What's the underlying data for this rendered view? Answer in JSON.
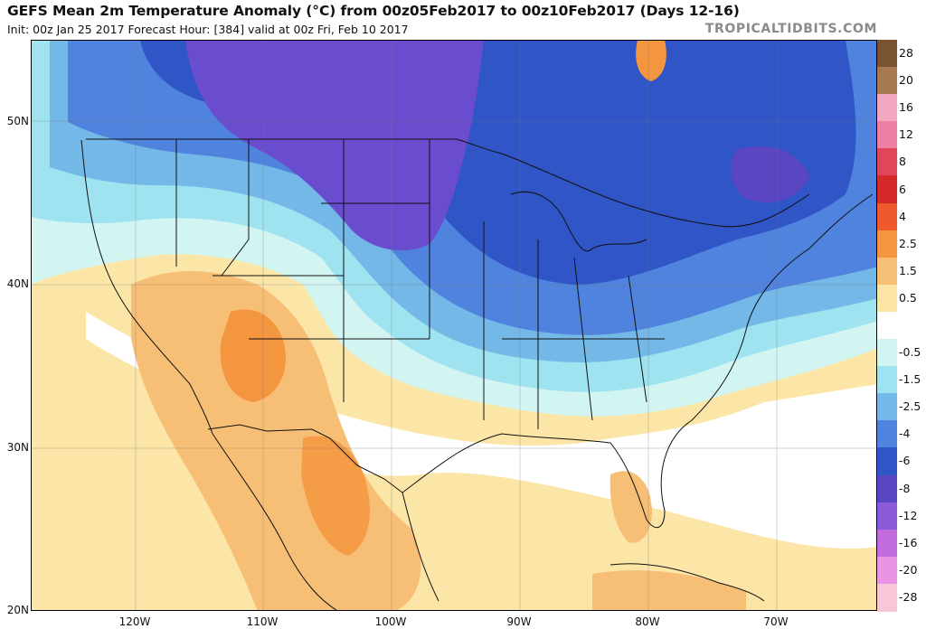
{
  "header": {
    "title": "GEFS Mean 2m Temperature Anomaly (°C) from 00z05Feb2017 to 00z10Feb2017 (Days 12-16)",
    "subtitle": "Init: 00z Jan 25 2017   Forecast Hour: [384]   valid at 00z Fri, Feb 10 2017",
    "brand": "TROPICALTIDBITS.COM"
  },
  "axes": {
    "lat_labels": [
      "50N",
      "40N",
      "30N",
      "20N"
    ],
    "lon_labels": [
      "120W",
      "110W",
      "100W",
      "90W",
      "80W",
      "70W"
    ]
  },
  "colorbar": {
    "levels": [
      {
        "label": "28",
        "color": "#7a5432"
      },
      {
        "label": "20",
        "color": "#a87a52"
      },
      {
        "label": "16",
        "color": "#f2a8bf"
      },
      {
        "label": "12",
        "color": "#ee7fa2"
      },
      {
        "label": "8",
        "color": "#e2455a"
      },
      {
        "label": "6",
        "color": "#d52a2a"
      },
      {
        "label": "4",
        "color": "#ef5a2c"
      },
      {
        "label": "2.5",
        "color": "#f4953f"
      },
      {
        "label": "1.5",
        "color": "#f7bf76"
      },
      {
        "label": "0.5",
        "color": "#fbe6a8"
      },
      {
        "label": "",
        "color": "#ffffff"
      },
      {
        "label": "-0.5",
        "color": "#d3f5f2"
      },
      {
        "label": "-1.5",
        "color": "#9fe3f0"
      },
      {
        "label": "-2.5",
        "color": "#74b8e8"
      },
      {
        "label": "-4",
        "color": "#4f83dd"
      },
      {
        "label": "-6",
        "color": "#2f55c6"
      },
      {
        "label": "-8",
        "color": "#5a45c2"
      },
      {
        "label": "-12",
        "color": "#8a5ad9"
      },
      {
        "label": "-16",
        "color": "#c26ce0"
      },
      {
        "label": "-20",
        "color": "#e795e4"
      },
      {
        "label": "-28",
        "color": "#f7c7d6"
      }
    ]
  },
  "map": {
    "colors": {
      "ocean_warm": "#fbe6a8",
      "land_warm": "#f7bf76",
      "hot": "#f4953f",
      "neutral": "#ffffff",
      "light_cool": "#d3f5f2",
      "cool": "#9fe3f0",
      "mid_cool": "#74b8e8",
      "cold": "#4f83dd",
      "very_cold": "#2f55c6",
      "purple": "#6a4ccf",
      "border": "#111111"
    }
  }
}
